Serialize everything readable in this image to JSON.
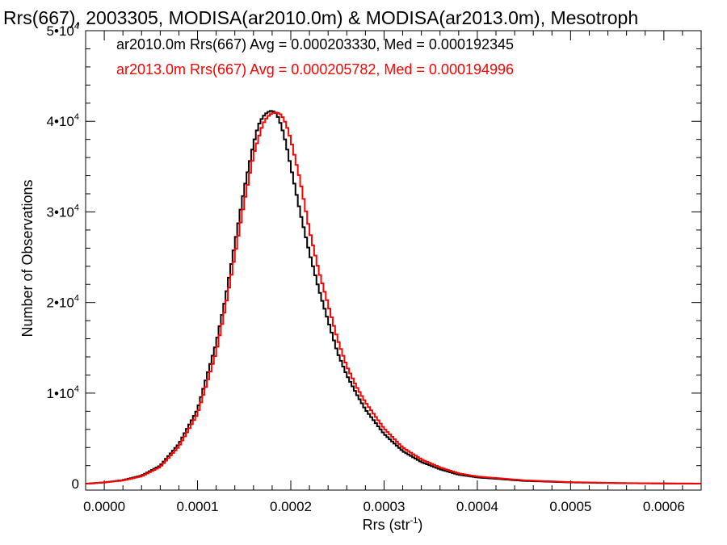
{
  "chart_data": {
    "type": "line",
    "title": "Rrs(667), 2003305, MODISA(ar2010.0m) & MODISA(ar2013.0m), Mesotroph",
    "xlabel_main": "Rrs (str",
    "xlabel_sup": "-1",
    "xlabel_close": ")",
    "ylabel": "Number of Observations",
    "xlim": [
      -2e-05,
      0.00064
    ],
    "ylim": [
      -700,
      50000
    ],
    "x_ticks": [
      {
        "value": 0.0,
        "label": "0.0000"
      },
      {
        "value": 0.0001,
        "label": "0.0001"
      },
      {
        "value": 0.0002,
        "label": "0.0002"
      },
      {
        "value": 0.0003,
        "label": "0.0003"
      },
      {
        "value": 0.0004,
        "label": "0.0004"
      },
      {
        "value": 0.0005,
        "label": "0.0005"
      },
      {
        "value": 0.0006,
        "label": "0.0006"
      }
    ],
    "y_ticks": [
      {
        "value": 0,
        "label": "0",
        "exp": ""
      },
      {
        "value": 10000,
        "label": "1•10",
        "exp": "4"
      },
      {
        "value": 20000,
        "label": "2•10",
        "exp": "4"
      },
      {
        "value": 30000,
        "label": "3•10",
        "exp": "4"
      },
      {
        "value": 40000,
        "label": "4•10",
        "exp": "4"
      },
      {
        "value": 50000,
        "label": "5•10",
        "exp": "4"
      }
    ],
    "series": [
      {
        "name": "ar2010.0m",
        "legend": "ar2010.0m Rrs(667) Avg = 0.000203330, Med = 0.000192345",
        "color": "#000000",
        "x": [
          -2e-05,
          0.0,
          2e-05,
          4e-05,
          6e-05,
          8e-05,
          0.0001,
          0.00012,
          0.00013,
          0.00014,
          0.00015,
          0.00016,
          0.000165,
          0.00017,
          0.000175,
          0.00018,
          0.000185,
          0.00019,
          0.000195,
          0.0002,
          0.00021,
          0.00022,
          0.00023,
          0.00024,
          0.00025,
          0.00026,
          0.00027,
          0.00028,
          0.0003,
          0.00032,
          0.00034,
          0.00036,
          0.00038,
          0.0004,
          0.00045,
          0.0005,
          0.00055,
          0.0006,
          0.00064
        ],
        "y": [
          0,
          150,
          400,
          900,
          2000,
          4400,
          8200,
          15500,
          20500,
          26500,
          32500,
          37500,
          39500,
          40500,
          41000,
          41200,
          40800,
          39500,
          37500,
          35000,
          30000,
          25500,
          21500,
          18000,
          14500,
          12000,
          10000,
          8200,
          5500,
          3600,
          2400,
          1600,
          1000,
          700,
          320,
          150,
          70,
          30,
          15
        ]
      },
      {
        "name": "ar2013.0m",
        "legend": "ar2013.0m Rrs(667) Avg = 0.000205782, Med = 0.000194996",
        "color": "#ff0000",
        "x": [
          -2e-05,
          0.0,
          2e-05,
          4e-05,
          6e-05,
          8e-05,
          0.0001,
          0.00012,
          0.00013,
          0.00014,
          0.00015,
          0.00016,
          0.00017,
          0.000175,
          0.00018,
          0.000185,
          0.00019,
          0.000195,
          0.0002,
          0.00021,
          0.00022,
          0.00023,
          0.00024,
          0.00025,
          0.00026,
          0.00027,
          0.00028,
          0.0003,
          0.00032,
          0.00034,
          0.00036,
          0.00038,
          0.0004,
          0.00045,
          0.0005,
          0.00055,
          0.0006,
          0.00064
        ],
        "y": [
          0,
          140,
          360,
          820,
          1850,
          4100,
          7700,
          14500,
          19500,
          25200,
          31000,
          36300,
          39700,
          40500,
          40900,
          41000,
          40700,
          39700,
          38000,
          33500,
          28000,
          23500,
          19800,
          16000,
          13000,
          10800,
          9000,
          6100,
          4000,
          2700,
          1800,
          1150,
          800,
          380,
          180,
          85,
          35,
          18
        ]
      }
    ]
  }
}
